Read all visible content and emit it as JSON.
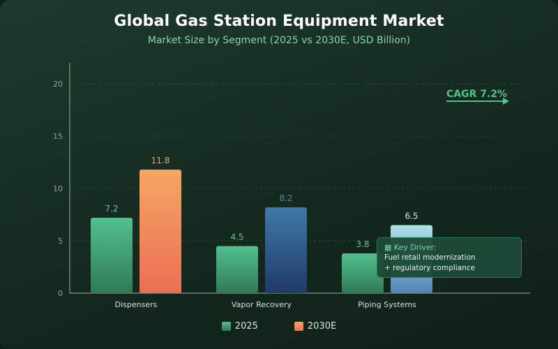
{
  "chart_data": {
    "type": "bar",
    "title": "Global Gas Station Equipment Market",
    "subtitle": "Market Size by Segment (2025 vs 2030E, USD Billion)",
    "categories": [
      "Dispensers",
      "Vapor Recovery",
      "Piping Systems"
    ],
    "series": [
      {
        "name": "2025",
        "values": [
          7.2,
          4.5,
          3.8
        ]
      },
      {
        "name": "2030E",
        "values": [
          11.8,
          8.2,
          6.5
        ]
      }
    ],
    "ylim": [
      0,
      22
    ],
    "yticks": [
      0,
      5,
      10,
      15,
      20
    ],
    "grid": "horizontal dashed",
    "legend_position": "bottom",
    "annotations": {
      "cagr": "CAGR 7.2%",
      "key_driver_title": "Key Driver:",
      "key_driver_line1": "Fuel retail modernization",
      "key_driver_line2": "+ regulatory compliance"
    }
  },
  "colors": {
    "series_2025": "#4fc08d",
    "dispensers_2030": "#f5a465",
    "vapor_2030": "#3f77a6",
    "piping_2030": "#a9dde5",
    "label_2025": "#63c79a",
    "label_dispensers_2030": "#f2a561",
    "label_vapor_2030": "#4f86b8",
    "label_piping_2030": "#cfe9f0"
  }
}
